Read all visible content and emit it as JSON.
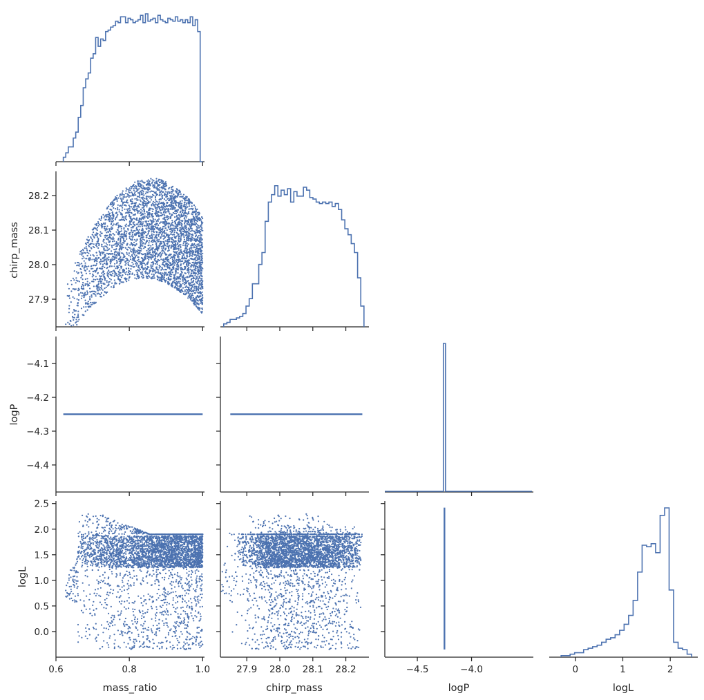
{
  "chart_data": {
    "type": "corner_plot",
    "title": "",
    "colors": {
      "series": "#4c72b0",
      "axis": "#262626",
      "background": "#ffffff"
    },
    "variables": [
      "mass_ratio",
      "chirp_mass",
      "logP",
      "logL"
    ],
    "xlabels": [
      "mass_ratio",
      "chirp_mass",
      "logP",
      "logL"
    ],
    "ylabels": [
      "",
      "chirp_mass",
      "logP",
      "logL"
    ],
    "axes": {
      "mass_ratio": {
        "range": [
          0.6,
          1.005
        ],
        "ticks": [
          0.6,
          0.8,
          1.0
        ],
        "tick_labels": [
          "0.6",
          "0.8",
          "1.0"
        ]
      },
      "chirp_mass": {
        "range": [
          27.82,
          28.27
        ],
        "ticks": [
          27.9,
          28.0,
          28.1,
          28.2
        ],
        "tick_labels": [
          "27.9",
          "28.0",
          "28.1",
          "28.2"
        ]
      },
      "logP": {
        "range": [
          -4.48,
          -4.02
        ],
        "ticks": [
          -4.1,
          -4.2,
          -4.3,
          -4.4
        ],
        "tick_labels": [
          "−4.1",
          "−4.2",
          "−4.3",
          "−4.4"
        ]
      },
      "logP_diag": {
        "range": [
          -4.8,
          -3.43
        ],
        "ticks": [
          -4.5,
          -4.0
        ],
        "tick_labels": [
          "−4.5",
          "−4.0"
        ]
      },
      "logL": {
        "range": [
          -0.5,
          2.55
        ],
        "ticks": [
          0.0,
          0.5,
          1.0,
          1.5,
          2.0,
          2.5
        ],
        "tick_labels": [
          "0.0",
          "0.5",
          "1.0",
          "1.5",
          "2.0",
          "2.5"
        ]
      },
      "logL_diag": {
        "range": [
          -0.55,
          2.58
        ],
        "ticks": [
          0,
          1,
          2
        ],
        "tick_labels": [
          "0",
          "1",
          "2"
        ]
      }
    },
    "histograms": {
      "mass_ratio": {
        "bin_range": [
          0.62,
          1.0
        ],
        "counts": [
          0.03,
          0.06,
          0.1,
          0.1,
          0.16,
          0.2,
          0.3,
          0.38,
          0.5,
          0.56,
          0.6,
          0.7,
          0.73,
          0.84,
          0.78,
          0.83,
          0.82,
          0.88,
          0.89,
          0.91,
          0.92,
          0.95,
          0.94,
          0.98,
          0.98,
          0.94,
          0.97,
          0.96,
          0.94,
          0.95,
          0.96,
          0.99,
          0.94,
          1.0,
          0.95,
          0.96,
          0.97,
          0.94,
          0.99,
          0.96,
          0.95,
          0.94,
          0.97,
          0.96,
          0.95,
          0.98,
          0.95,
          0.96,
          0.94,
          0.96,
          0.94,
          0.98,
          0.92,
          0.96,
          0.88,
          0.0
        ]
      },
      "chirp_mass": {
        "bin_range": [
          27.83,
          28.255
        ],
        "counts": [
          0.02,
          0.03,
          0.05,
          0.05,
          0.06,
          0.07,
          0.09,
          0.14,
          0.19,
          0.29,
          0.29,
          0.42,
          0.5,
          0.71,
          0.84,
          0.89,
          0.95,
          0.88,
          0.92,
          0.89,
          0.93,
          0.84,
          0.91,
          0.88,
          0.88,
          0.94,
          0.92,
          0.87,
          0.86,
          0.84,
          0.83,
          0.84,
          0.83,
          0.84,
          0.81,
          0.83,
          0.79,
          0.72,
          0.66,
          0.62,
          0.56,
          0.5,
          0.33,
          0.14
        ]
      },
      "logP": {
        "bin_range": [
          -4.26,
          -4.24
        ],
        "counts": [
          1.0
        ]
      },
      "logL": {
        "bin_range": [
          -0.3,
          2.45
        ],
        "counts": [
          0.01,
          0.01,
          0.02,
          0.03,
          0.03,
          0.05,
          0.06,
          0.07,
          0.08,
          0.1,
          0.12,
          0.13,
          0.15,
          0.18,
          0.22,
          0.28,
          0.38,
          0.57,
          0.75,
          0.74,
          0.76,
          0.7,
          0.95,
          1.0,
          0.45,
          0.1,
          0.06,
          0.05,
          0.02
        ]
      }
    },
    "constant_values": {
      "logP": -4.25
    },
    "scatter_description": {
      "mass_ratio_vs_chirp_mass": "dense band between about 27.96 and 28.25 peaking near mass_ratio 0.85",
      "mass_ratio_vs_logL": "peak near logL 2.4 at mass_ratio 0.69, main band 1.2-2.0, sparse tail down to -0.35",
      "chirp_mass_vs_logL": "band 1.3-1.9 with arch up to 2.4, sparse points down to -0.35"
    },
    "grid": false,
    "legend": "none"
  }
}
